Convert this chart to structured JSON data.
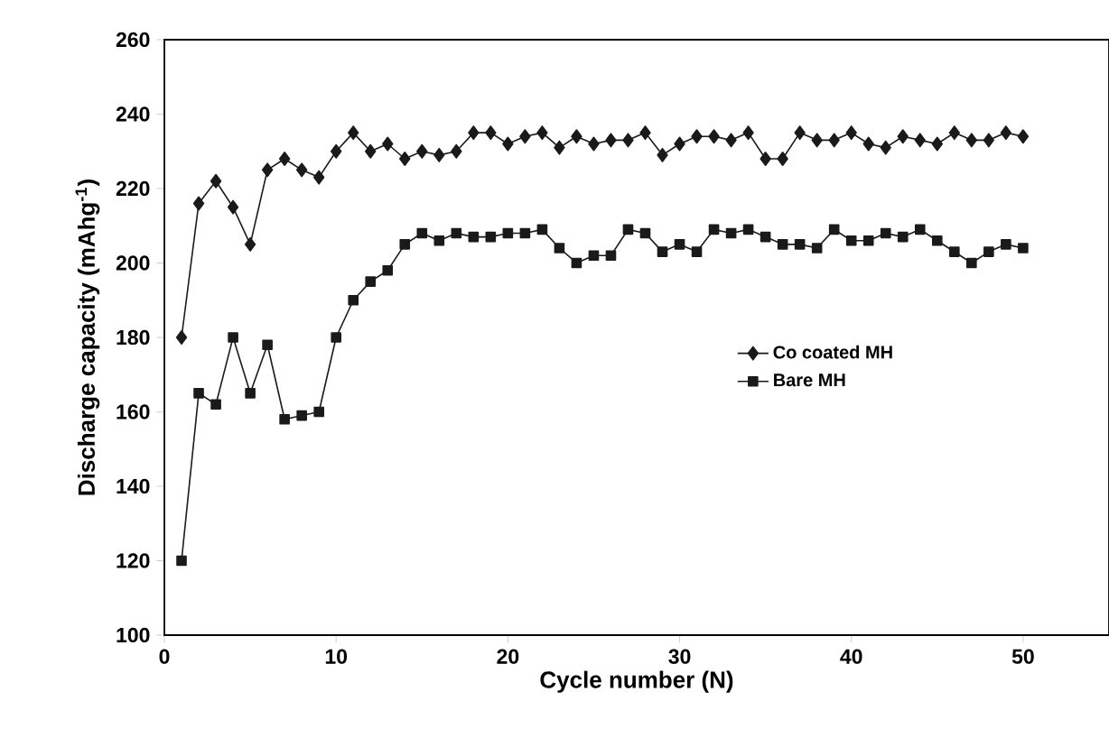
{
  "chart_data": {
    "type": "line",
    "xlabel": "Cycle number (N)",
    "ylabel": "Discharge capacity (mAhg$^{-1}$)",
    "x": [
      1,
      2,
      3,
      4,
      5,
      6,
      7,
      8,
      9,
      10,
      11,
      12,
      13,
      14,
      15,
      16,
      17,
      18,
      19,
      20,
      21,
      22,
      23,
      24,
      25,
      26,
      27,
      28,
      29,
      30,
      31,
      32,
      33,
      34,
      35,
      36,
      37,
      38,
      39,
      40,
      41,
      42,
      43,
      44,
      45,
      46,
      47,
      48,
      49,
      50
    ],
    "xlim": [
      0,
      55
    ],
    "xticks": [
      0,
      10,
      20,
      30,
      40,
      50
    ],
    "ylim": [
      100,
      260
    ],
    "yticks": [
      100,
      120,
      140,
      160,
      180,
      200,
      220,
      240,
      260
    ],
    "legend": "right",
    "grid": false,
    "line_style": "solid",
    "series": [
      {
        "name": "Co coated MH",
        "color": "#1a1a1a",
        "marker": "diamond",
        "values": [
          180,
          216,
          222,
          215,
          205,
          225,
          228,
          225,
          223,
          230,
          235,
          230,
          232,
          228,
          230,
          229,
          230,
          235,
          235,
          232,
          234,
          235,
          231,
          234,
          232,
          233,
          233,
          235,
          229,
          232,
          234,
          234,
          233,
          235,
          228,
          228,
          235,
          233,
          233,
          235,
          232,
          231,
          234,
          233,
          232,
          235,
          233,
          233,
          235,
          234
        ]
      },
      {
        "name": "Bare MH",
        "color": "#1a1a1a",
        "marker": "square",
        "values": [
          120,
          165,
          162,
          180,
          165,
          178,
          158,
          159,
          160,
          180,
          190,
          195,
          198,
          205,
          208,
          206,
          208,
          207,
          207,
          208,
          208,
          209,
          204,
          200,
          202,
          202,
          209,
          208,
          203,
          205,
          203,
          209,
          208,
          209,
          207,
          205,
          205,
          204,
          209,
          206,
          206,
          208,
          207,
          209,
          206,
          203,
          200,
          203,
          205,
          204
        ]
      }
    ]
  }
}
